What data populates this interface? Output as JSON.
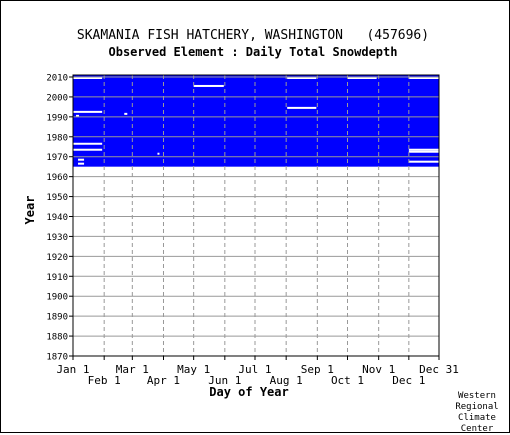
{
  "chart_data": {
    "type": "heatmap",
    "title": "SKAMANIA FISH HATCHERY, WASHINGTON   (457696)",
    "subtitle": "Observed Element : Daily Total Snowdepth",
    "xlabel": "Day of Year",
    "ylabel": "Year",
    "xlim": [
      1,
      365
    ],
    "ylim": [
      1870,
      2011
    ],
    "x_ticks_upper": [
      {
        "label": "Jan 1",
        "day": 1
      },
      {
        "label": "Mar 1",
        "day": 60
      },
      {
        "label": "May 1",
        "day": 121
      },
      {
        "label": "Jul 1",
        "day": 182
      },
      {
        "label": "Sep 1",
        "day": 244
      },
      {
        "label": "Nov 1",
        "day": 305
      },
      {
        "label": "Dec 31",
        "day": 365
      }
    ],
    "x_ticks_lower": [
      {
        "label": "Feb 1",
        "day": 32
      },
      {
        "label": "Apr 1",
        "day": 91
      },
      {
        "label": "Jun 1",
        "day": 152
      },
      {
        "label": "Aug 1",
        "day": 213
      },
      {
        "label": "Oct 1",
        "day": 274
      },
      {
        "label": "Dec 1",
        "day": 335
      }
    ],
    "y_ticks": [
      "1870",
      "1880",
      "1890",
      "1900",
      "1910",
      "1920",
      "1930",
      "1940",
      "1950",
      "1960",
      "1970",
      "1980",
      "1990",
      "2000",
      "2010"
    ],
    "fill_color": "#0000ff",
    "observed_period": {
      "start_year": 1965,
      "end_year": 2010,
      "start_day": 1,
      "end_day": 365
    },
    "missing_segments": [
      {
        "year": 2009,
        "day_start": 1,
        "day_end": 30
      },
      {
        "year": 2009,
        "day_start": 214,
        "day_end": 243
      },
      {
        "year": 2009,
        "day_start": 274,
        "day_end": 303
      },
      {
        "year": 2009,
        "day_start": 335,
        "day_end": 365
      },
      {
        "year": 2005,
        "day_start": 121,
        "day_end": 151
      },
      {
        "year": 1994,
        "day_start": 214,
        "day_end": 243
      },
      {
        "year": 1992,
        "day_start": 1,
        "day_end": 30
      },
      {
        "year": 1991,
        "day_start": 52,
        "day_end": 55
      },
      {
        "year": 1990,
        "day_start": 4,
        "day_end": 7
      },
      {
        "year": 1976,
        "day_start": 1,
        "day_end": 30
      },
      {
        "year": 1973,
        "day_start": 1,
        "day_end": 30
      },
      {
        "year": 1973,
        "day_start": 335,
        "day_end": 365
      },
      {
        "year": 1972,
        "day_start": 335,
        "day_end": 365
      },
      {
        "year": 1971,
        "day_start": 85,
        "day_end": 86
      },
      {
        "year": 1968,
        "day_start": 6,
        "day_end": 12
      },
      {
        "year": 1967,
        "day_start": 335,
        "day_end": 365
      },
      {
        "year": 1966,
        "day_start": 6,
        "day_end": 12
      }
    ]
  },
  "credit": {
    "line1": "Western",
    "line2": "Regional",
    "line3": "Climate",
    "line4": "Center"
  },
  "colors": {
    "grid": "#999999",
    "axis": "#000000",
    "data": "#0000ff",
    "background": "#ffffff"
  }
}
